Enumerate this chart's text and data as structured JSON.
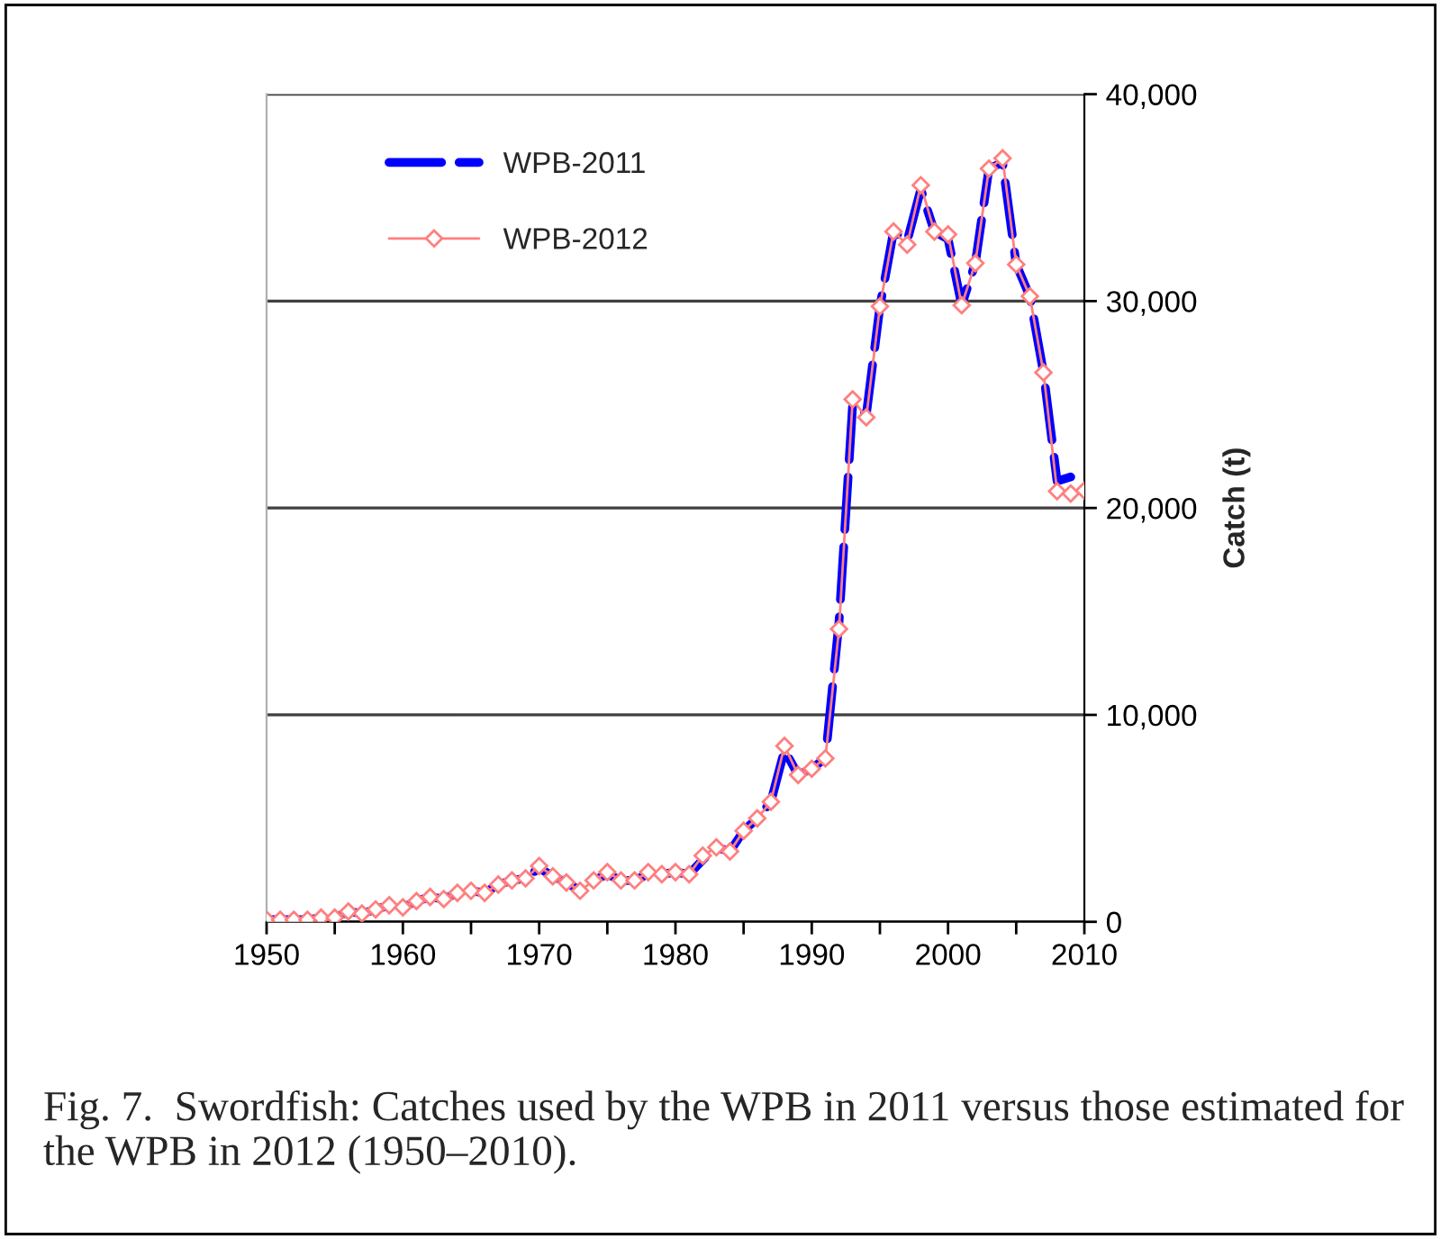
{
  "chart_data": {
    "type": "line",
    "x": [
      1950,
      1951,
      1952,
      1953,
      1954,
      1955,
      1956,
      1957,
      1958,
      1959,
      1960,
      1961,
      1962,
      1963,
      1964,
      1965,
      1966,
      1967,
      1968,
      1969,
      1970,
      1971,
      1972,
      1973,
      1974,
      1975,
      1976,
      1977,
      1978,
      1979,
      1980,
      1981,
      1982,
      1983,
      1984,
      1985,
      1986,
      1987,
      1988,
      1989,
      1990,
      1991,
      1992,
      1993,
      1994,
      1995,
      1996,
      1997,
      1998,
      1999,
      2000,
      2001,
      2002,
      2003,
      2004,
      2005,
      2006,
      2007,
      2008,
      2009,
      2010
    ],
    "series": [
      {
        "name": "WPB-2011",
        "color": "#0000ff",
        "line_style": "dashed",
        "marker": "none",
        "values": [
          100,
          100,
          100,
          100,
          200,
          200,
          500,
          400,
          600,
          800,
          700,
          1000,
          1200,
          1100,
          1400,
          1500,
          1400,
          1800,
          2000,
          2100,
          2600,
          2200,
          1900,
          1500,
          2000,
          2300,
          2000,
          2000,
          2300,
          2300,
          2400,
          2300,
          3000,
          3600,
          3400,
          4400,
          5000,
          5800,
          8300,
          7100,
          7400,
          7900,
          14500,
          25000,
          24500,
          29740,
          33360,
          32900,
          35400,
          33360,
          33000,
          29800,
          31830,
          36400,
          36700,
          31770,
          30230,
          26550,
          21300,
          21500,
          null
        ]
      },
      {
        "name": "WPB-2012",
        "color": "#ff7f7f",
        "line_style": "solid",
        "marker": "diamond",
        "values": [
          100,
          100,
          100,
          100,
          200,
          200,
          500,
          400,
          600,
          800,
          700,
          1000,
          1200,
          1100,
          1400,
          1500,
          1400,
          1800,
          2000,
          2100,
          2700,
          2200,
          1900,
          1500,
          2000,
          2400,
          2000,
          2000,
          2400,
          2300,
          2400,
          2300,
          3200,
          3600,
          3400,
          4400,
          5000,
          5800,
          8500,
          7100,
          7400,
          7900,
          14150,
          25250,
          24380,
          29740,
          33360,
          32730,
          35600,
          33360,
          33220,
          29800,
          31830,
          36400,
          36900,
          31770,
          30230,
          26550,
          20810,
          20700,
          20840
        ]
      }
    ],
    "xlim": [
      1950,
      2010
    ],
    "xticks": [
      1950,
      {
        "value": 1955,
        "label": null
      },
      1960,
      {
        "value": 1965,
        "label": null
      },
      1970,
      {
        "value": 1975,
        "label": null
      },
      1980,
      {
        "value": 1985,
        "label": null
      },
      1990,
      {
        "value": 1995,
        "label": null
      },
      2000,
      {
        "value": 2005,
        "label": null
      },
      2010
    ],
    "ylim": [
      0,
      40000
    ],
    "yticks": [
      {
        "value": 0,
        "label": "0"
      },
      {
        "value": 10000,
        "label": "10,000"
      },
      {
        "value": 20000,
        "label": "20,000"
      },
      {
        "value": 30000,
        "label": "30,000"
      },
      {
        "value": 40000,
        "label": "40,000"
      }
    ],
    "ylabel": "Catch (t)",
    "grid": "y",
    "legend": "top left",
    "annotations": [
      "Fig. 7.  Swordfish: Catches used by the WPB in 2011 versus those estimated for the WPB in 2012 (1950–2010)."
    ]
  }
}
